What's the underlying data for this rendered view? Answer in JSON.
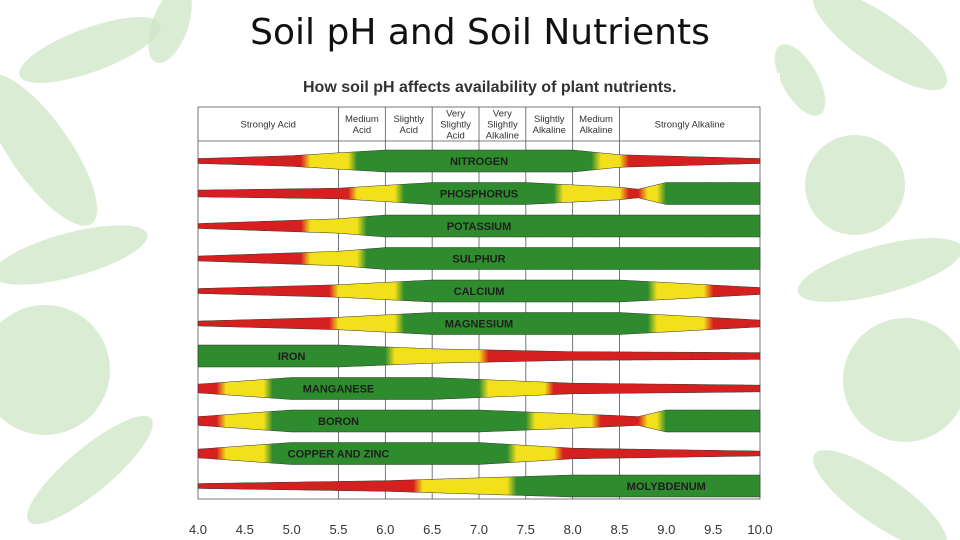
{
  "slide": {
    "title": "Soil pH and Soil Nutrients"
  },
  "chart_data": {
    "type": "band",
    "title": "How soil pH affects availability of plant nutrients.",
    "xlim": [
      4.0,
      10.0
    ],
    "x_ticks": [
      "4.0",
      "4.5",
      "5.0",
      "5.5",
      "6.0",
      "6.5",
      "7.0",
      "7.5",
      "8.0",
      "8.5",
      "9.0",
      "9.5",
      "10.0"
    ],
    "grid": true,
    "categories": [
      {
        "label": "Strongly Acid",
        "range": [
          4.0,
          5.5
        ]
      },
      {
        "label": "Medium Acid",
        "range": [
          5.5,
          6.0
        ]
      },
      {
        "label": "Slightly Acid",
        "range": [
          6.0,
          6.5
        ]
      },
      {
        "label": "Very Slightly Acid",
        "range": [
          6.5,
          7.0
        ]
      },
      {
        "label": "Very Slightly Alkaline",
        "range": [
          7.0,
          7.5
        ]
      },
      {
        "label": "Slightly Alkaline",
        "range": [
          7.5,
          8.0
        ]
      },
      {
        "label": "Medium Alkaline",
        "range": [
          8.0,
          8.5
        ]
      },
      {
        "label": "Strongly Alkaline",
        "range": [
          8.5,
          10.0
        ]
      }
    ],
    "availability_scale": "band thickness and colour (green = high, yellow = medium, red = low)",
    "series": [
      {
        "name": "NITROGEN",
        "label_ph": 7.0,
        "profile": [
          [
            4.0,
            0.1
          ],
          [
            5.0,
            0.4
          ],
          [
            6.0,
            1.0
          ],
          [
            8.0,
            1.0
          ],
          [
            8.5,
            0.5
          ],
          [
            10.0,
            0.1
          ]
        ]
      },
      {
        "name": "PHOSPHORUS",
        "label_ph": 7.0,
        "profile": [
          [
            4.0,
            0.2
          ],
          [
            5.5,
            0.4
          ],
          [
            6.5,
            1.0
          ],
          [
            7.5,
            1.0
          ],
          [
            8.5,
            0.5
          ],
          [
            8.7,
            0.3
          ],
          [
            9.0,
            1.0
          ],
          [
            10.0,
            1.0
          ]
        ]
      },
      {
        "name": "POTASSIUM",
        "label_ph": 7.0,
        "profile": [
          [
            4.0,
            0.1
          ],
          [
            5.5,
            0.6
          ],
          [
            6.0,
            1.0
          ],
          [
            10.0,
            1.0
          ]
        ]
      },
      {
        "name": "SULPHUR",
        "label_ph": 7.0,
        "profile": [
          [
            4.0,
            0.1
          ],
          [
            5.5,
            0.6
          ],
          [
            6.0,
            1.0
          ],
          [
            10.0,
            1.0
          ]
        ]
      },
      {
        "name": "CALCIUM",
        "label_ph": 7.0,
        "profile": [
          [
            4.0,
            0.1
          ],
          [
            5.5,
            0.5
          ],
          [
            6.5,
            1.0
          ],
          [
            8.5,
            1.0
          ],
          [
            10.0,
            0.2
          ]
        ]
      },
      {
        "name": "MAGNESIUM",
        "label_ph": 7.0,
        "profile": [
          [
            4.0,
            0.1
          ],
          [
            5.5,
            0.5
          ],
          [
            6.5,
            1.0
          ],
          [
            8.5,
            1.0
          ],
          [
            10.0,
            0.2
          ]
        ]
      },
      {
        "name": "IRON",
        "label_ph": 5.0,
        "profile": [
          [
            4.0,
            1.0
          ],
          [
            5.5,
            1.0
          ],
          [
            6.5,
            0.6
          ],
          [
            8.0,
            0.3
          ],
          [
            10.0,
            0.2
          ]
        ]
      },
      {
        "name": "MANGANESE",
        "label_ph": 5.5,
        "profile": [
          [
            4.0,
            0.3
          ],
          [
            5.0,
            1.0
          ],
          [
            6.5,
            1.0
          ],
          [
            8.0,
            0.4
          ],
          [
            10.0,
            0.2
          ]
        ]
      },
      {
        "name": "BORON",
        "label_ph": 5.5,
        "profile": [
          [
            4.0,
            0.3
          ],
          [
            5.0,
            1.0
          ],
          [
            7.0,
            1.0
          ],
          [
            8.5,
            0.4
          ],
          [
            8.7,
            0.3
          ],
          [
            9.0,
            1.0
          ],
          [
            10.0,
            1.0
          ]
        ]
      },
      {
        "name": "COPPER AND ZINC",
        "label_ph": 5.5,
        "profile": [
          [
            4.0,
            0.3
          ],
          [
            5.0,
            1.0
          ],
          [
            7.0,
            1.0
          ],
          [
            8.0,
            0.4
          ],
          [
            10.0,
            0.1
          ]
        ]
      },
      {
        "name": "MOLYBDENUM",
        "label_ph": 9.0,
        "profile": [
          [
            4.0,
            0.1
          ],
          [
            6.0,
            0.4
          ],
          [
            7.0,
            0.7
          ],
          [
            8.0,
            1.0
          ],
          [
            10.0,
            1.0
          ]
        ]
      }
    ]
  },
  "colors": {
    "high": "#2e8b2e",
    "medium": "#f2e11a",
    "low": "#d61f1f",
    "grid": "#555555",
    "decor": "#cfe5c5"
  },
  "decor_icon": "vegetable-pattern"
}
